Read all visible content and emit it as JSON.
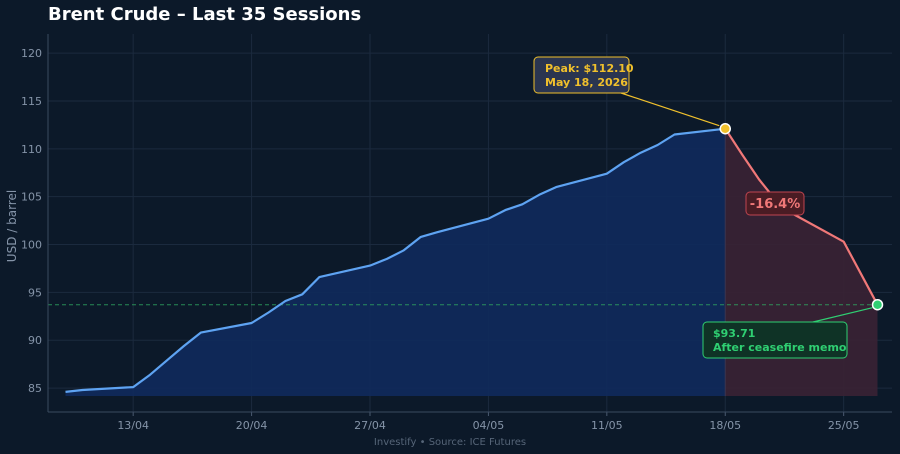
{
  "chart_data": {
    "type": "area",
    "title": "Brent Crude – Last 35 Sessions",
    "xlabel": "",
    "ylabel": "USD / barrel",
    "ylim": [
      82.5,
      122
    ],
    "yticks": [
      85,
      90,
      95,
      100,
      105,
      110,
      115,
      120
    ],
    "xtick_labels": [
      "13/04",
      "20/04",
      "27/04",
      "04/05",
      "11/05",
      "18/05",
      "25/05"
    ],
    "grid": true,
    "dates": [
      "2026-04-09",
      "2026-04-10",
      "2026-04-13",
      "2026-04-14",
      "2026-04-15",
      "2026-04-16",
      "2026-04-17",
      "2026-04-20",
      "2026-04-21",
      "2026-04-22",
      "2026-04-23",
      "2026-04-24",
      "2026-04-27",
      "2026-04-28",
      "2026-04-29",
      "2026-04-30",
      "2026-05-01",
      "2026-05-04",
      "2026-05-05",
      "2026-05-06",
      "2026-05-07",
      "2026-05-08",
      "2026-05-11",
      "2026-05-12",
      "2026-05-13",
      "2026-05-14",
      "2026-05-15",
      "2026-05-18",
      "2026-05-19",
      "2026-05-20",
      "2026-05-21",
      "2026-05-22",
      "2026-05-25",
      "2026-05-26",
      "2026-05-27"
    ],
    "values": [
      84.6,
      84.8,
      85.1,
      86.4,
      87.9,
      89.4,
      90.8,
      91.8,
      92.9,
      94.1,
      94.8,
      96.6,
      97.8,
      98.5,
      99.4,
      100.8,
      101.3,
      102.7,
      103.6,
      104.2,
      105.2,
      106.0,
      107.4,
      108.6,
      109.6,
      110.4,
      111.5,
      112.1,
      109.4,
      106.8,
      104.6,
      103.2,
      100.3,
      97.0,
      93.71
    ],
    "peak": {
      "date": "2026-05-18",
      "value": 112.1,
      "label_line1": "Peak: $112.10",
      "label_line2": "May 18, 2026"
    },
    "current": {
      "date": "2026-05-27",
      "value": 93.71,
      "label_line1": "$93.71",
      "label_line2": "After ceasefire memo"
    },
    "drop_label": "-16.4%",
    "colors": {
      "rise": "#5ea3f2",
      "fall": "#f07878",
      "peak": "#f0c02c",
      "current": "#2fcf72",
      "rise_fill": "#0f2a5c",
      "fall_fill": "#3a2234"
    }
  },
  "footer": {
    "text": "Investify  •  Source: ICE Futures"
  }
}
